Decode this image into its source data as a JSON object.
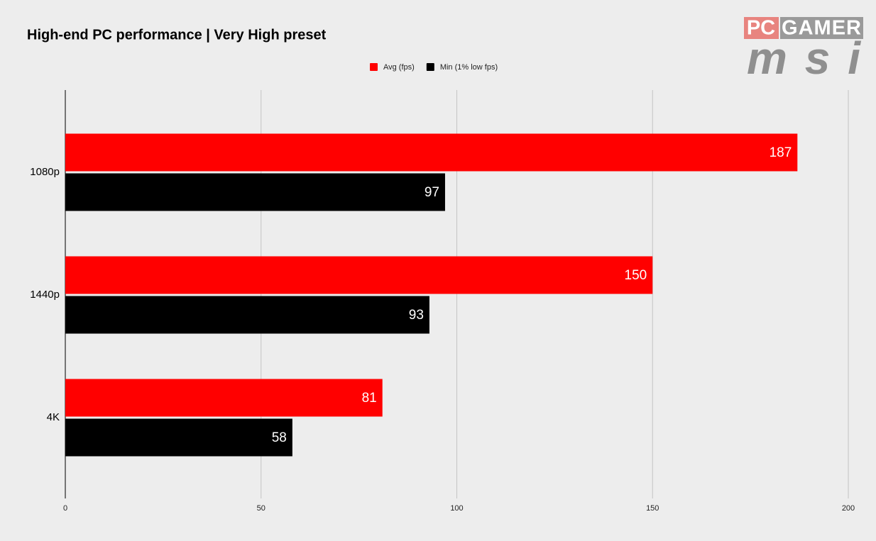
{
  "chart_data": {
    "type": "hbar",
    "title": "High-end PC performance | Very High preset",
    "categories": [
      "1080p",
      "1440p",
      "4K"
    ],
    "series": [
      {
        "name": "Avg (fps)",
        "color": "#ff0000",
        "values": [
          187,
          150,
          81
        ]
      },
      {
        "name": "Min (1% low fps)",
        "color": "#000000",
        "values": [
          97,
          93,
          58
        ]
      }
    ],
    "xlim": [
      0,
      200
    ],
    "xticks": [
      0,
      50,
      100,
      150,
      200
    ],
    "grid": true,
    "legend": "top"
  },
  "logo": {
    "pc": "PC",
    "gamer": "GAMER",
    "brand": "msi"
  }
}
